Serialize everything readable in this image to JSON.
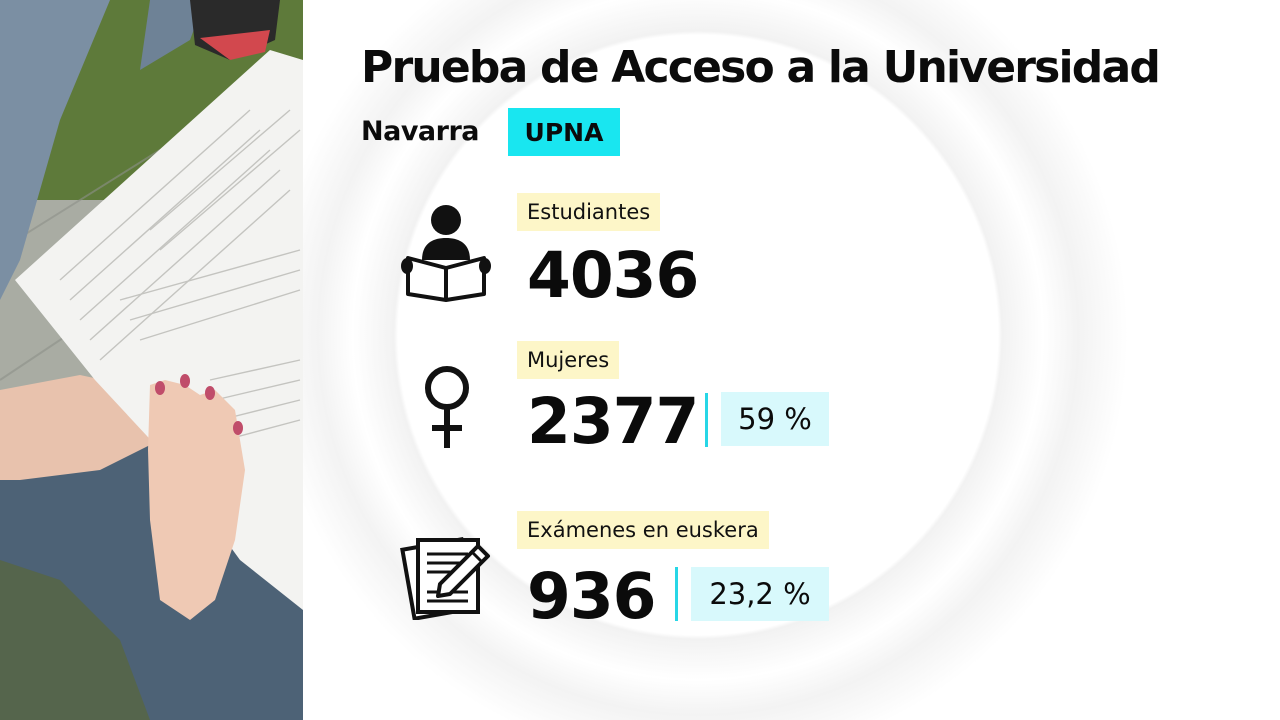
{
  "header": {
    "title": "Prueba de Acceso a la Universidad",
    "region": "Navarra",
    "university": "UPNA"
  },
  "stats": [
    {
      "label": "Estudiantes",
      "value": "4036",
      "icon": "student-reading-icon"
    },
    {
      "label": "Mujeres",
      "value": "2377",
      "percent": "59 %",
      "icon": "female-symbol-icon"
    },
    {
      "label": "Exámenes en euskera",
      "value": "936",
      "percent": "23,2 %",
      "icon": "exam-pencil-icon"
    }
  ],
  "colors": {
    "university_badge": "#19e6f0",
    "label_highlight": "#fdf6c8",
    "percent_highlight": "#d8f9fc",
    "divider": "#27d6e6"
  }
}
